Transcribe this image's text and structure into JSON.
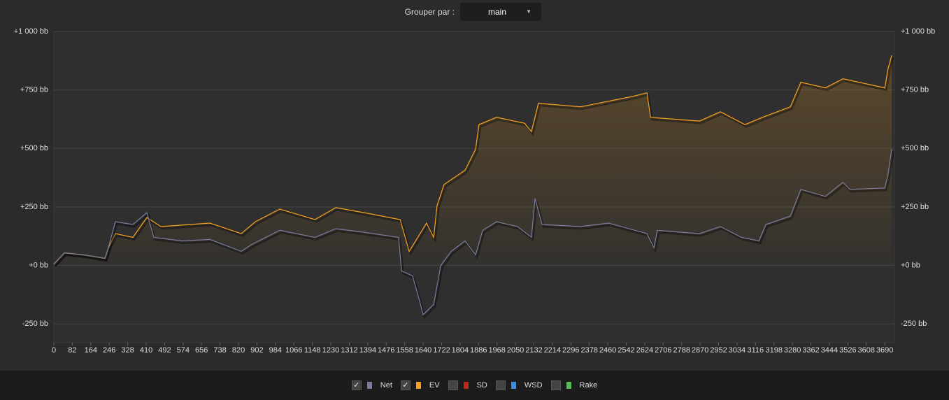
{
  "header": {
    "group_label": "Grouper par :",
    "group_value": "main"
  },
  "chart_data": {
    "type": "line",
    "xlim": [
      0,
      3733
    ],
    "xticks": [
      0,
      82,
      164,
      246,
      328,
      410,
      492,
      574,
      656,
      738,
      820,
      902,
      984,
      1066,
      1148,
      1230,
      1312,
      1394,
      1476,
      1558,
      1640,
      1722,
      1804,
      1886,
      1968,
      2050,
      2132,
      2214,
      2296,
      2378,
      2460,
      2542,
      2624,
      2706,
      2788,
      2870,
      2952,
      3034,
      3116,
      3198,
      3280,
      3362,
      3444,
      3526,
      3608,
      3690
    ],
    "ylim": [
      -330,
      1000
    ],
    "yticks": [
      {
        "value": -250,
        "label": "-250 bb"
      },
      {
        "value": 0,
        "label": "+0 bb"
      },
      {
        "value": 250,
        "label": "+250 bb"
      },
      {
        "value": 500,
        "label": "+500 bb"
      },
      {
        "value": 750,
        "label": "+750 bb"
      },
      {
        "value": 1000,
        "label": "+1 000 bb"
      }
    ],
    "grid": true,
    "series": [
      {
        "name": "Net",
        "color": "#7b7b9c",
        "visible": true,
        "x": [
          0,
          47,
          134,
          227,
          242,
          273,
          351,
          413,
          444,
          568,
          693,
          832,
          879,
          1003,
          1159,
          1252,
          1376,
          1531,
          1544,
          1593,
          1624,
          1640,
          1687,
          1718,
          1764,
          1826,
          1873,
          1904,
          1966,
          2059,
          2121,
          2137,
          2168,
          2339,
          2463,
          2634,
          2665,
          2680,
          2867,
          2960,
          3053,
          3131,
          3162,
          3271,
          3317,
          3426,
          3504,
          3535,
          3690,
          3705,
          3721
        ],
        "values": [
          6,
          54,
          45,
          30,
          75,
          187,
          175,
          226,
          120,
          105,
          111,
          60,
          90,
          150,
          120,
          157,
          142,
          120,
          -24,
          -45,
          -151,
          -211,
          -166,
          0,
          60,
          105,
          45,
          150,
          187,
          166,
          120,
          286,
          175,
          166,
          181,
          136,
          75,
          150,
          136,
          166,
          120,
          105,
          175,
          211,
          325,
          295,
          355,
          325,
          331,
          392,
          497
        ]
      },
      {
        "name": "EV",
        "color": "#f5a020",
        "visible": true,
        "x": [
          0,
          47,
          134,
          227,
          242,
          273,
          351,
          413,
          475,
          693,
          832,
          895,
          1003,
          1159,
          1252,
          1376,
          1538,
          1578,
          1655,
          1687,
          1702,
          1733,
          1826,
          1873,
          1888,
          1966,
          2090,
          2121,
          2152,
          2339,
          2572,
          2634,
          2650,
          2867,
          2960,
          3069,
          3146,
          3271,
          3317,
          3426,
          3504,
          3690,
          3705,
          3721
        ],
        "values": [
          6,
          54,
          45,
          30,
          75,
          136,
          120,
          205,
          166,
          181,
          136,
          187,
          241,
          196,
          247,
          226,
          196,
          60,
          181,
          120,
          256,
          346,
          407,
          497,
          602,
          633,
          608,
          572,
          693,
          678,
          723,
          738,
          633,
          617,
          657,
          602,
          633,
          678,
          783,
          759,
          798,
          759,
          843,
          898
        ]
      },
      {
        "name": "SD",
        "color": "#c0281c",
        "visible": false
      },
      {
        "name": "WSD",
        "color": "#3a8ee6",
        "visible": false
      },
      {
        "name": "Rake",
        "color": "#5cb85c",
        "visible": false
      }
    ]
  }
}
